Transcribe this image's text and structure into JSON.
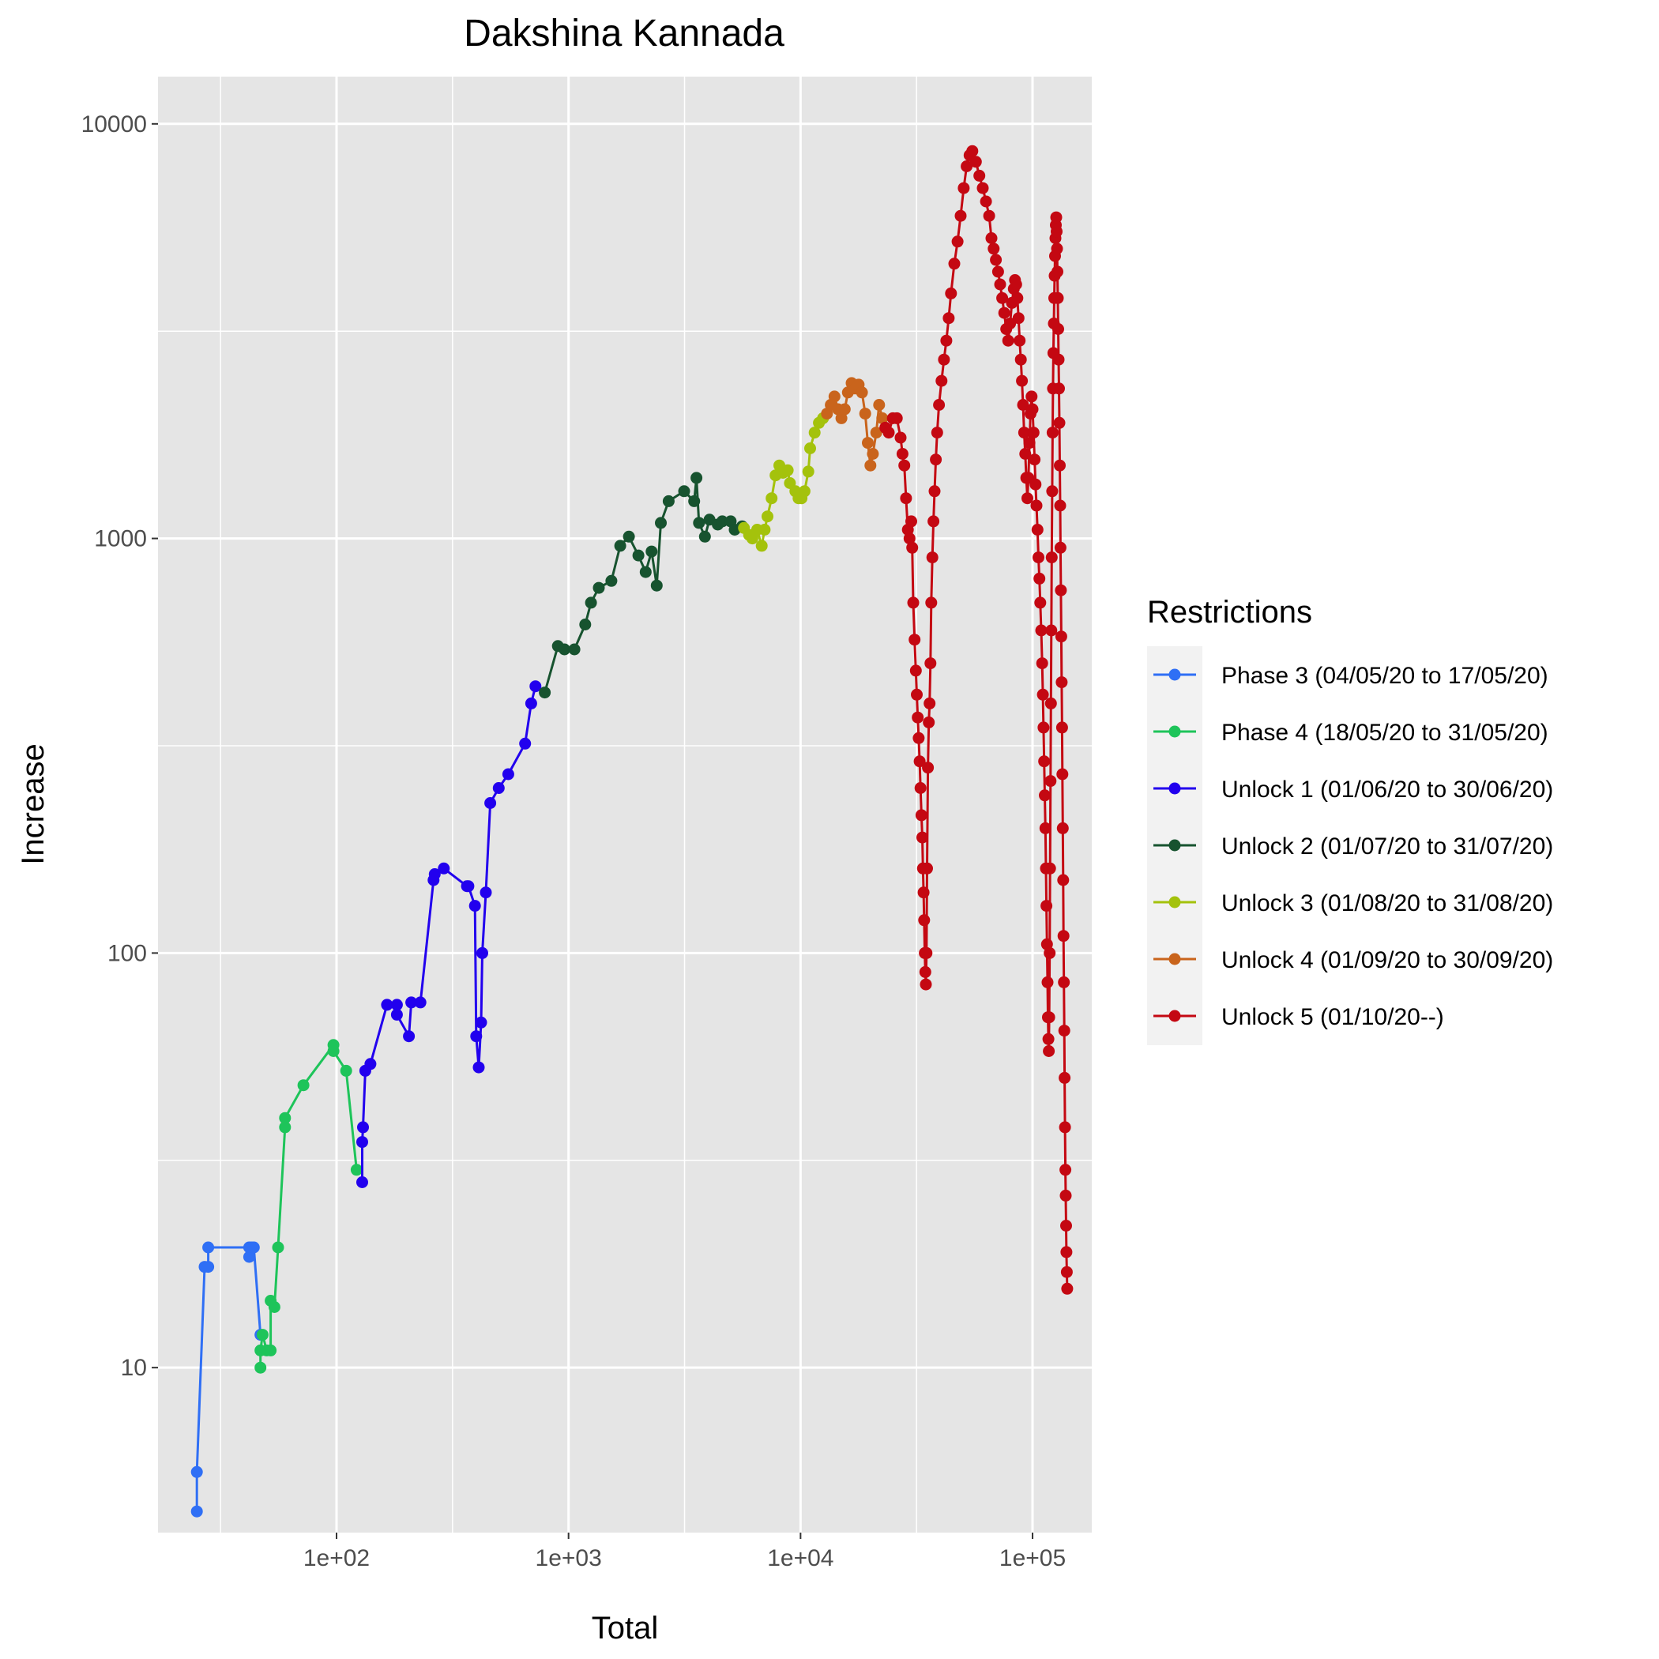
{
  "chart_data": {
    "type": "line",
    "title": "Dakshina Kannada",
    "xlabel": "Total",
    "ylabel": "Increase",
    "x_scale": "log10",
    "y_scale": "log10",
    "xlim": [
      17,
      180000
    ],
    "ylim": [
      4,
      13000
    ],
    "x_ticks": [
      {
        "value": 100,
        "label": "1e+02"
      },
      {
        "value": 1000,
        "label": "1e+03"
      },
      {
        "value": 10000,
        "label": "1e+04"
      },
      {
        "value": 100000,
        "label": "1e+05"
      }
    ],
    "y_ticks": [
      {
        "value": 10,
        "label": "10"
      },
      {
        "value": 100,
        "label": "100"
      },
      {
        "value": 1000,
        "label": "1000"
      },
      {
        "value": 10000,
        "label": "10000"
      }
    ],
    "grid": true,
    "legend_position": "right",
    "legend_title": "Restrictions",
    "series": [
      {
        "name": "Phase 3 (04/05/20 to 17/05/20)",
        "color": "#2f6ff5",
        "points": [
          [
            25,
            4.5
          ],
          [
            25,
            5.6
          ],
          [
            27,
            17.5
          ],
          [
            28,
            17.5
          ],
          [
            28,
            19.5
          ],
          [
            42,
            19.5
          ],
          [
            42,
            18.5
          ],
          [
            43,
            19.5
          ],
          [
            44,
            19.5
          ],
          [
            47,
            12
          ]
        ]
      },
      {
        "name": "Phase 4 (18/05/20 to 31/05/20)",
        "color": "#1ec45a",
        "points": [
          [
            47,
            10
          ],
          [
            47,
            11
          ],
          [
            48,
            12
          ],
          [
            50,
            11
          ],
          [
            52,
            11
          ],
          [
            52,
            14.5
          ],
          [
            54,
            14
          ],
          [
            56,
            19.5
          ],
          [
            60,
            38
          ],
          [
            60,
            40
          ],
          [
            72,
            48
          ],
          [
            97,
            60
          ],
          [
            97,
            58
          ],
          [
            110,
            52
          ],
          [
            122,
            30
          ]
        ]
      },
      {
        "name": "Unlock 1 (01/06/20 to 30/06/20)",
        "color": "#2200ee",
        "points": [
          [
            129,
            28
          ],
          [
            129,
            35
          ],
          [
            130,
            38
          ],
          [
            133,
            52
          ],
          [
            140,
            54
          ],
          [
            165,
            75
          ],
          [
            182,
            75
          ],
          [
            182,
            71
          ],
          [
            205,
            63
          ],
          [
            210,
            76
          ],
          [
            230,
            76
          ],
          [
            262,
            150
          ],
          [
            265,
            155
          ],
          [
            290,
            160
          ],
          [
            365,
            145
          ],
          [
            370,
            145
          ],
          [
            395,
            130
          ],
          [
            400,
            63
          ],
          [
            410,
            53
          ],
          [
            420,
            68
          ],
          [
            425,
            100
          ],
          [
            440,
            140
          ],
          [
            460,
            230
          ],
          [
            500,
            250
          ],
          [
            550,
            270
          ],
          [
            650,
            320
          ],
          [
            690,
            400
          ],
          [
            720,
            440
          ]
        ]
      },
      {
        "name": "Unlock 2 (01/07/20 to 31/07/20)",
        "color": "#17532f",
        "points": [
          [
            790,
            425
          ],
          [
            900,
            550
          ],
          [
            960,
            540
          ],
          [
            1060,
            540
          ],
          [
            1180,
            620
          ],
          [
            1250,
            700
          ],
          [
            1350,
            760
          ],
          [
            1530,
            790
          ],
          [
            1670,
            960
          ],
          [
            1820,
            1010
          ],
          [
            2000,
            910
          ],
          [
            2150,
            830
          ],
          [
            2280,
            930
          ],
          [
            2400,
            770
          ],
          [
            2500,
            1090
          ],
          [
            2700,
            1230
          ],
          [
            3150,
            1300
          ],
          [
            3480,
            1230
          ],
          [
            3560,
            1400
          ],
          [
            3650,
            1090
          ],
          [
            3870,
            1010
          ],
          [
            4050,
            1110
          ],
          [
            4400,
            1080
          ],
          [
            4600,
            1100
          ],
          [
            5000,
            1100
          ],
          [
            5200,
            1050
          ],
          [
            5600,
            1070
          ]
        ]
      },
      {
        "name": "Unlock 3 (01/08/20 to 31/08/20)",
        "color": "#a4c20c",
        "points": [
          [
            5700,
            1060
          ],
          [
            6000,
            1020
          ],
          [
            6200,
            1000
          ],
          [
            6500,
            1050
          ],
          [
            6800,
            960
          ],
          [
            7000,
            1050
          ],
          [
            7200,
            1130
          ],
          [
            7500,
            1250
          ],
          [
            7800,
            1420
          ],
          [
            8100,
            1500
          ],
          [
            8400,
            1440
          ],
          [
            8800,
            1460
          ],
          [
            9000,
            1360
          ],
          [
            9500,
            1300
          ],
          [
            9800,
            1250
          ],
          [
            10100,
            1250
          ],
          [
            10400,
            1300
          ],
          [
            10800,
            1450
          ],
          [
            11000,
            1650
          ],
          [
            11500,
            1800
          ],
          [
            12000,
            1900
          ],
          [
            12500,
            1950
          ]
        ]
      },
      {
        "name": "Unlock 4 (01/09/20 to 30/09/20)",
        "color": "#c9641c",
        "points": [
          [
            13000,
            2000
          ],
          [
            13500,
            2100
          ],
          [
            14000,
            2200
          ],
          [
            14500,
            2050
          ],
          [
            15000,
            1950
          ],
          [
            15500,
            2050
          ],
          [
            16000,
            2250
          ],
          [
            16600,
            2370
          ],
          [
            17200,
            2300
          ],
          [
            17800,
            2350
          ],
          [
            18400,
            2250
          ],
          [
            19000,
            2000
          ],
          [
            19500,
            1700
          ],
          [
            20000,
            1500
          ],
          [
            20500,
            1600
          ],
          [
            21200,
            1800
          ],
          [
            21800,
            2100
          ],
          [
            22500,
            1950
          ]
        ]
      },
      {
        "name": "Unlock 5 (01/10/20--)",
        "color": "#c40812",
        "points": [
          [
            23200,
            1850
          ],
          [
            24000,
            1800
          ],
          [
            25000,
            1950
          ],
          [
            26000,
            1950
          ],
          [
            27000,
            1750
          ],
          [
            27500,
            1600
          ],
          [
            28000,
            1500
          ],
          [
            28500,
            1250
          ],
          [
            29000,
            1050
          ],
          [
            29500,
            1000
          ],
          [
            30000,
            1100
          ],
          [
            30300,
            950
          ],
          [
            30600,
            700
          ],
          [
            31000,
            570
          ],
          [
            31400,
            480
          ],
          [
            31700,
            420
          ],
          [
            32000,
            370
          ],
          [
            32300,
            330
          ],
          [
            32600,
            290
          ],
          [
            32900,
            250
          ],
          [
            33200,
            215
          ],
          [
            33500,
            190
          ],
          [
            33700,
            160
          ],
          [
            33900,
            140
          ],
          [
            34100,
            120
          ],
          [
            34300,
            100
          ],
          [
            34500,
            90
          ],
          [
            34700,
            84
          ],
          [
            34900,
            100
          ],
          [
            35100,
            160
          ],
          [
            35400,
            280
          ],
          [
            35700,
            360
          ],
          [
            36000,
            400
          ],
          [
            36300,
            500
          ],
          [
            36600,
            700
          ],
          [
            37000,
            900
          ],
          [
            37400,
            1100
          ],
          [
            37800,
            1300
          ],
          [
            38300,
            1550
          ],
          [
            38800,
            1800
          ],
          [
            39500,
            2100
          ],
          [
            40500,
            2400
          ],
          [
            41500,
            2700
          ],
          [
            42500,
            3000
          ],
          [
            43500,
            3400
          ],
          [
            44500,
            3900
          ],
          [
            46000,
            4600
          ],
          [
            47500,
            5200
          ],
          [
            49000,
            6000
          ],
          [
            50500,
            7000
          ],
          [
            52000,
            7900
          ],
          [
            53500,
            8400
          ],
          [
            55000,
            8600
          ],
          [
            57000,
            8100
          ],
          [
            59000,
            7500
          ],
          [
            61000,
            7000
          ],
          [
            63000,
            6500
          ],
          [
            65000,
            6000
          ],
          [
            66500,
            5300
          ],
          [
            68000,
            5000
          ],
          [
            69500,
            4700
          ],
          [
            71000,
            4400
          ],
          [
            72500,
            4100
          ],
          [
            74000,
            3800
          ],
          [
            75500,
            3500
          ],
          [
            77000,
            3200
          ],
          [
            78500,
            3000
          ],
          [
            80000,
            3300
          ],
          [
            81500,
            3700
          ],
          [
            83000,
            4000
          ],
          [
            84000,
            4200
          ],
          [
            85000,
            4100
          ],
          [
            86000,
            3800
          ],
          [
            87000,
            3400
          ],
          [
            88000,
            3000
          ],
          [
            89000,
            2700
          ],
          [
            90000,
            2400
          ],
          [
            91000,
            2100
          ],
          [
            92000,
            1800
          ],
          [
            93000,
            1600
          ],
          [
            94000,
            1400
          ],
          [
            95000,
            1250
          ],
          [
            96000,
            1400
          ],
          [
            97000,
            1700
          ],
          [
            98000,
            2000
          ],
          [
            99000,
            2200
          ],
          [
            100000,
            2050
          ],
          [
            101000,
            1800
          ],
          [
            102000,
            1550
          ],
          [
            103000,
            1350
          ],
          [
            104000,
            1200
          ],
          [
            105000,
            1050
          ],
          [
            106000,
            900
          ],
          [
            107000,
            800
          ],
          [
            108000,
            700
          ],
          [
            109000,
            600
          ],
          [
            110000,
            500
          ],
          [
            110800,
            420
          ],
          [
            111500,
            350
          ],
          [
            112200,
            290
          ],
          [
            112900,
            240
          ],
          [
            113600,
            200
          ],
          [
            114200,
            160
          ],
          [
            114800,
            130
          ],
          [
            115400,
            105
          ],
          [
            116000,
            85
          ],
          [
            116500,
            70
          ],
          [
            117000,
            62
          ],
          [
            117500,
            58
          ],
          [
            118000,
            70
          ],
          [
            118500,
            100
          ],
          [
            119000,
            160
          ],
          [
            119500,
            260
          ],
          [
            120000,
            400
          ],
          [
            120500,
            600
          ],
          [
            121000,
            900
          ],
          [
            121500,
            1300
          ],
          [
            122000,
            1800
          ],
          [
            122500,
            2300
          ],
          [
            123000,
            2800
          ],
          [
            123500,
            3300
          ],
          [
            124000,
            3800
          ],
          [
            124500,
            4300
          ],
          [
            125000,
            4800
          ],
          [
            125500,
            5300
          ],
          [
            126000,
            5700
          ],
          [
            126500,
            5950
          ],
          [
            127000,
            5500
          ],
          [
            127500,
            5000
          ],
          [
            128000,
            4400
          ],
          [
            128500,
            3800
          ],
          [
            129000,
            3200
          ],
          [
            129500,
            2700
          ],
          [
            130000,
            2300
          ],
          [
            130500,
            1900
          ],
          [
            131000,
            1500
          ],
          [
            131500,
            1200
          ],
          [
            132000,
            950
          ],
          [
            132500,
            750
          ],
          [
            133000,
            580
          ],
          [
            133500,
            450
          ],
          [
            134000,
            350
          ],
          [
            134500,
            270
          ],
          [
            135000,
            200
          ],
          [
            135500,
            150
          ],
          [
            136000,
            110
          ],
          [
            136500,
            85
          ],
          [
            137000,
            65
          ],
          [
            137500,
            50
          ],
          [
            138000,
            38
          ],
          [
            138500,
            30
          ],
          [
            139000,
            26
          ],
          [
            139500,
            22
          ],
          [
            140000,
            19
          ],
          [
            140500,
            17
          ],
          [
            141000,
            15.5
          ]
        ]
      }
    ]
  }
}
